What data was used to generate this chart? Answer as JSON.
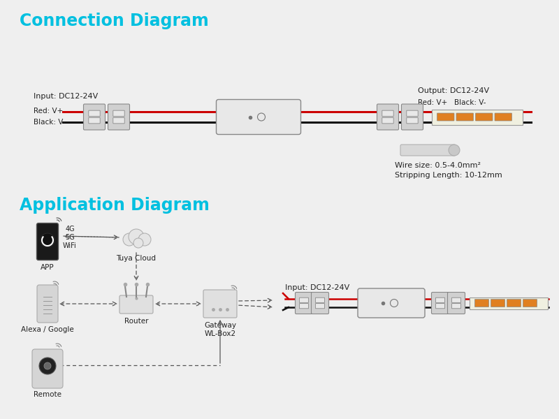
{
  "bg_color": "#efefef",
  "title_color": "#00c0e0",
  "text_color": "#222222",
  "red_wire": "#cc0000",
  "black_wire": "#111111",
  "connector_face": "#d0d0d0",
  "connector_edge": "#888888",
  "controller_face": "#e8e8e8",
  "led_orange": "#e08020",
  "led_strip_bg": "#f0f0e0",
  "wire_icon_face": "#d8d8d8",
  "conn_diagram_title": "Connection Diagram",
  "app_diagram_title": "Application Diagram",
  "input_label": "Input: DC12-24V",
  "output_label": "Output: DC12-24V",
  "red_plus_label": "Red: V+",
  "black_minus_label": "Black: V-",
  "red_black_out": "Red: V+   Black: V-",
  "wire_size_label": "Wire size: 0.5-4.0mm²",
  "strip_length_label": "Stripping Length: 10-12mm",
  "app_label": "APP",
  "wifi_label": "4G\n5G\nWiFi",
  "cloud_label": "Tuya Cloud",
  "alexa_label": "Alexa / Google",
  "router_label": "Router",
  "gateway_label": "Gateway\nWL-Box2",
  "remote_label": "Remote",
  "input_app_label": "Input: DC12-24V"
}
